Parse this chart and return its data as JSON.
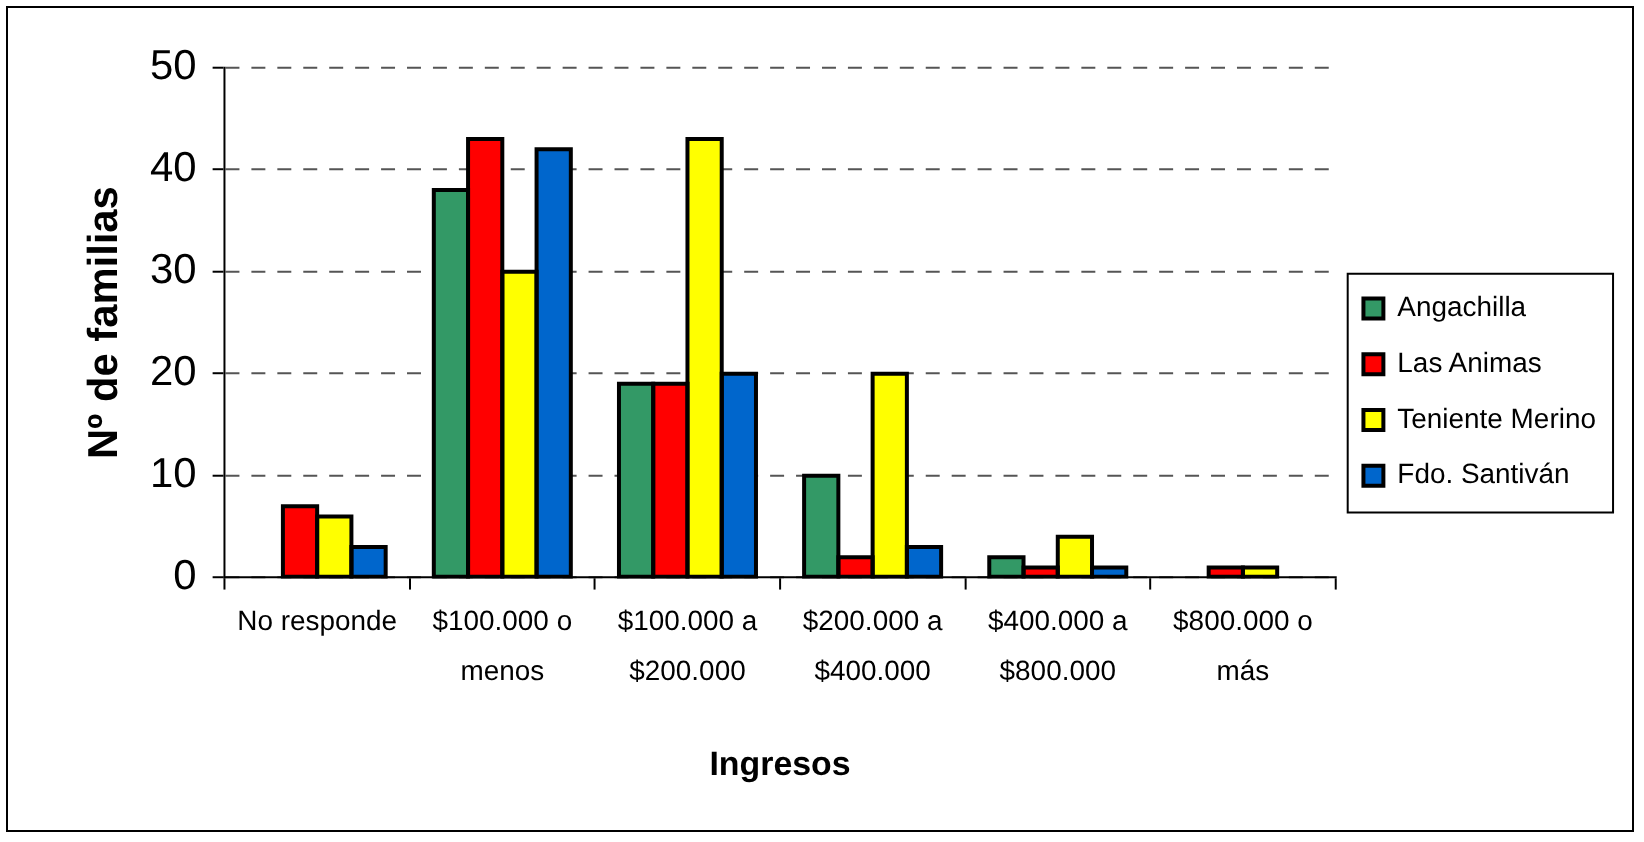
{
  "chart_data": {
    "type": "bar",
    "xlabel": "Ingresos",
    "ylabel": "Nº de familias",
    "categories": [
      "No responde",
      "$100.000 o menos",
      "$100.000 a $200.000",
      "$200.000 a $400.000",
      "$400.000 a $800.000",
      "$800.000 o más"
    ],
    "series": [
      {
        "name": "Angachilla",
        "color": "#339966",
        "values": [
          null,
          38,
          19,
          10,
          2,
          null
        ]
      },
      {
        "name": "Las Animas",
        "color": "#ff0000",
        "values": [
          7,
          43,
          19,
          2,
          1,
          1
        ]
      },
      {
        "name": "Teniente Merino",
        "color": "#ffff00",
        "values": [
          6,
          30,
          43,
          20,
          4,
          1
        ]
      },
      {
        "name": "Fdo. Santiván",
        "color": "#0066cc",
        "values": [
          3,
          42,
          20,
          3,
          1,
          null
        ]
      }
    ],
    "ylim": [
      0,
      50
    ],
    "yticks": [
      0,
      10,
      20,
      30,
      40,
      50
    ],
    "grid": "y",
    "legend": "right"
  }
}
